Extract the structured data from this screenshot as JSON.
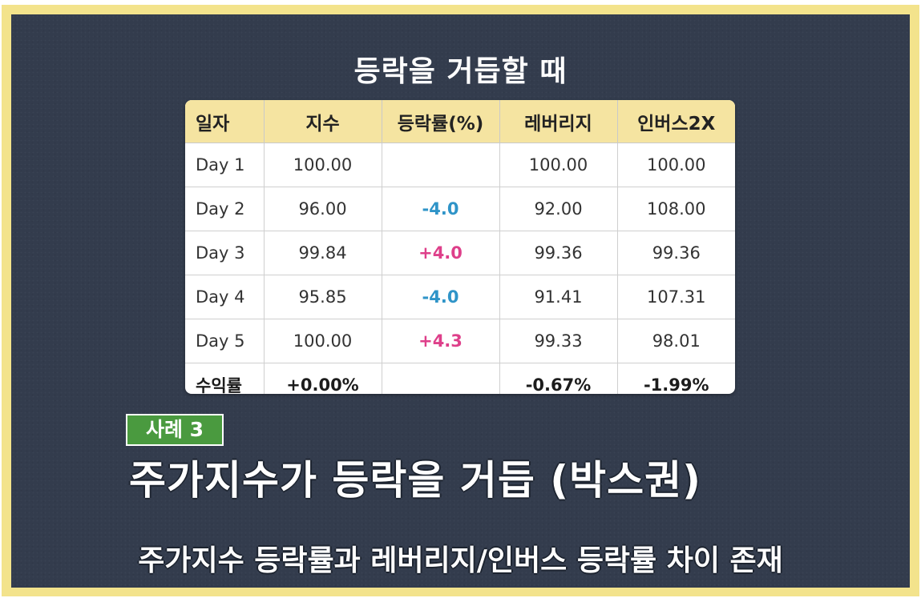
{
  "title": "등락을 거듭할 때",
  "table": {
    "headers": [
      "일자",
      "지수",
      "등락률(%)",
      "레버리지",
      "인버스2X"
    ],
    "rows": [
      [
        "Day 1",
        "100.00",
        "",
        "100.00",
        "100.00"
      ],
      [
        "Day 2",
        "96.00",
        "-4.0",
        "92.00",
        "108.00"
      ],
      [
        "Day 3",
        "99.84",
        "+4.0",
        "99.36",
        "99.36"
      ],
      [
        "Day 4",
        "95.85",
        "-4.0",
        "91.41",
        "107.31"
      ],
      [
        "Day 5",
        "100.00",
        "+4.3",
        "99.33",
        "98.01"
      ]
    ],
    "total": [
      "수익률",
      "+0.00%",
      "",
      "-0.67%",
      "-1.99%"
    ]
  },
  "colors": {
    "negative": "#2f94c8",
    "positive": "#de3f8a",
    "badge": "#4a9a3f",
    "header_bg": "#f5e4a1",
    "board": "#333c4d",
    "frame": "#f3e38c"
  },
  "badge": "사례 3",
  "headline": "주가지수가 등락을 거듭 (박스권)",
  "subline": "주가지수 등락률과 레버리지/인버스 등락률 차이 존재"
}
